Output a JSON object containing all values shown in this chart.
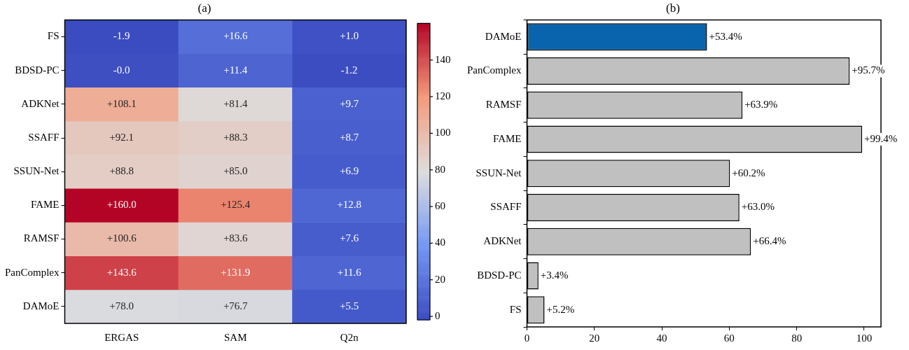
{
  "chart_data": [
    {
      "type": "heatmap",
      "title": "(a)",
      "categories": [
        "ERGAS",
        "SAM",
        "Q2n"
      ],
      "y_categories": [
        "FS",
        "BDSD-PC",
        "ADKNet",
        "SSAFF",
        "SSUN-Net",
        "FAME",
        "RAMSF",
        "PanComplex",
        "DAMoE"
      ],
      "cells": [
        [
          -1.9,
          16.6,
          1.0
        ],
        [
          0.0,
          11.4,
          -1.2
        ],
        [
          108.1,
          81.4,
          9.7
        ],
        [
          92.1,
          88.3,
          8.7
        ],
        [
          88.8,
          85.0,
          6.9
        ],
        [
          160.0,
          125.4,
          12.8
        ],
        [
          100.6,
          83.6,
          7.6
        ],
        [
          143.6,
          131.9,
          11.6
        ],
        [
          78.0,
          76.7,
          5.5
        ]
      ],
      "cell_labels": [
        [
          "-1.9",
          "+16.6",
          "+1.0"
        ],
        [
          "-0.0",
          "+11.4",
          "-1.2"
        ],
        [
          "+108.1",
          "+81.4",
          "+9.7"
        ],
        [
          "+92.1",
          "+88.3",
          "+8.7"
        ],
        [
          "+88.8",
          "+85.0",
          "+6.9"
        ],
        [
          "+160.0",
          "+125.4",
          "+12.8"
        ],
        [
          "+100.6",
          "+83.6",
          "+7.6"
        ],
        [
          "+143.6",
          "+131.9",
          "+11.6"
        ],
        [
          "+78.0",
          "+76.7",
          "+5.5"
        ]
      ],
      "clim": [
        -1.9,
        160
      ],
      "cticks": [
        0,
        20,
        40,
        60,
        80,
        100,
        120,
        140
      ]
    },
    {
      "type": "bar",
      "title": "(b)",
      "orientation": "horizontal",
      "categories": [
        "DAMoE",
        "PanComplex",
        "RAMSF",
        "FAME",
        "SSUN-Net",
        "SSAFF",
        "ADKNet",
        "BDSD-PC",
        "FS"
      ],
      "values": [
        53.4,
        95.7,
        63.9,
        99.4,
        60.2,
        63.0,
        66.4,
        3.4,
        5.2
      ],
      "colors": [
        "#0a64ad",
        "#c0c0c0",
        "#c0c0c0",
        "#c0c0c0",
        "#c0c0c0",
        "#c0c0c0",
        "#c0c0c0",
        "#c0c0c0",
        "#c0c0c0"
      ],
      "value_labels": [
        "+53.4%",
        "+95.7%",
        "+63.9%",
        "+99.4%",
        "+60.2%",
        "+63.0%",
        "+66.4%",
        "+3.4%",
        "+5.2%"
      ],
      "xlim": [
        0,
        105
      ],
      "xticks": [
        0,
        20,
        40,
        60,
        80,
        100
      ],
      "grid": false
    }
  ]
}
